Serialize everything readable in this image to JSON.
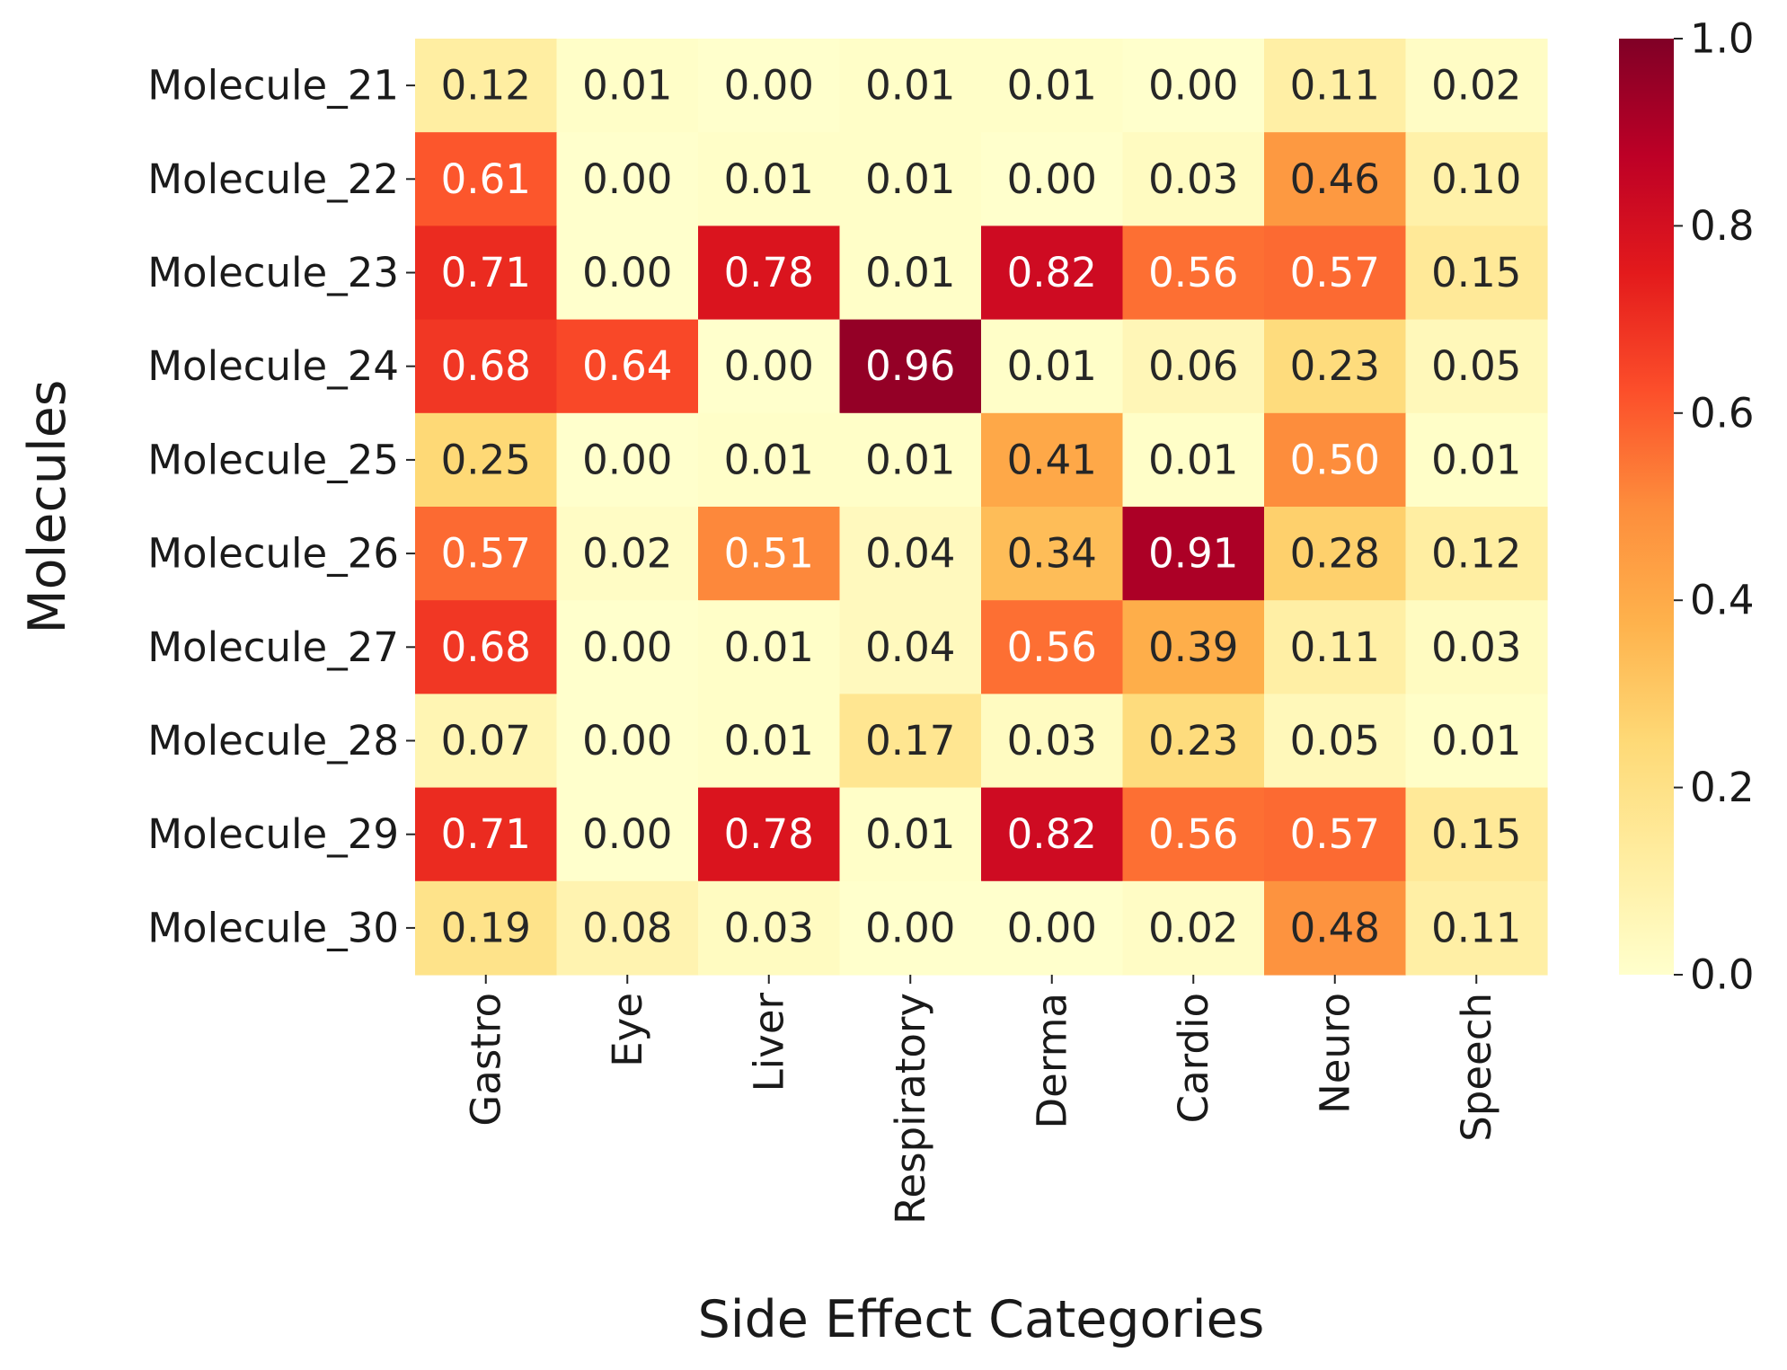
{
  "chart_data": {
    "type": "heatmap",
    "title": "",
    "xlabel": "Side Effect Categories",
    "ylabel": "Molecules",
    "x_categories": [
      "Gastro",
      "Eye",
      "Liver",
      "Respiratory",
      "Derma",
      "Cardio",
      "Neuro",
      "Speech"
    ],
    "y_categories": [
      "Molecule_21",
      "Molecule_22",
      "Molecule_23",
      "Molecule_24",
      "Molecule_25",
      "Molecule_26",
      "Molecule_27",
      "Molecule_28",
      "Molecule_29",
      "Molecule_30"
    ],
    "values": [
      [
        0.12,
        0.01,
        0.0,
        0.01,
        0.01,
        0.0,
        0.11,
        0.02
      ],
      [
        0.61,
        0.0,
        0.01,
        0.01,
        0.0,
        0.03,
        0.46,
        0.1
      ],
      [
        0.71,
        0.0,
        0.78,
        0.01,
        0.82,
        0.56,
        0.57,
        0.15
      ],
      [
        0.68,
        0.64,
        0.0,
        0.96,
        0.01,
        0.06,
        0.23,
        0.05
      ],
      [
        0.25,
        0.0,
        0.01,
        0.01,
        0.41,
        0.01,
        0.5,
        0.01
      ],
      [
        0.57,
        0.02,
        0.51,
        0.04,
        0.34,
        0.91,
        0.28,
        0.12
      ],
      [
        0.68,
        0.0,
        0.01,
        0.04,
        0.56,
        0.39,
        0.11,
        0.03
      ],
      [
        0.07,
        0.0,
        0.01,
        0.17,
        0.03,
        0.23,
        0.05,
        0.01
      ],
      [
        0.71,
        0.0,
        0.78,
        0.01,
        0.82,
        0.56,
        0.57,
        0.15
      ],
      [
        0.19,
        0.08,
        0.03,
        0.0,
        0.0,
        0.02,
        0.48,
        0.11
      ]
    ],
    "value_format_decimals": 2,
    "colormap": "YlOrRd",
    "color_stops": [
      "#ffffcc",
      "#ffeda0",
      "#fed976",
      "#feb24c",
      "#fd8d3c",
      "#fc4e2a",
      "#e31a1c",
      "#bd0026",
      "#800026"
    ],
    "colorbar": {
      "vmin": 0.0,
      "vmax": 1.0,
      "ticks": [
        0.0,
        0.2,
        0.4,
        0.6,
        0.8,
        1.0
      ],
      "tick_labels": [
        "0.0",
        "0.2",
        "0.4",
        "0.6",
        "0.8",
        "1.0"
      ]
    },
    "text_color_dark": "#262626",
    "text_color_light": "#ffffff"
  }
}
